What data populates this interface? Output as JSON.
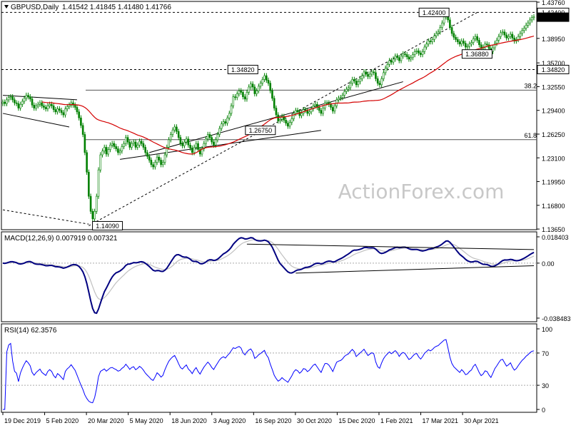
{
  "watermark": "ActionForex.com",
  "chart_data": [
    {
      "type": "candlestick",
      "title": "GBPUSD,Daily",
      "ohlc_label": "1.41542 1.41845 1.41480 1.41766",
      "colors": {
        "bull": "#008000",
        "bear": "#008000",
        "ma": "#d40000",
        "trend": "#000000",
        "axis": "#000000"
      },
      "ylim": [
        1.1366,
        1.4376
      ],
      "y_ticks": [
        "1.43760",
        "1.38950",
        "1.35700",
        "1.32550",
        "1.29400",
        "1.26250",
        "1.23100",
        "1.19950",
        "1.16800",
        "1.13650"
      ],
      "y_tick_values": [
        1.4376,
        1.3895,
        1.357,
        1.3255,
        1.294,
        1.2625,
        1.231,
        1.1995,
        1.168,
        1.1365
      ],
      "price_tags": [
        {
          "label": "1.42400",
          "value": 1.424
        },
        {
          "label": "1.41766",
          "value": 1.41766,
          "dark": true
        },
        {
          "label": "1.34820",
          "value": 1.3482
        }
      ],
      "annotations": [
        {
          "label": "1.14090",
          "x": 0.197,
          "y": 1.1409
        },
        {
          "label": "1.34820",
          "x": 0.452,
          "y": 1.3482
        },
        {
          "label": "1.26750",
          "x": 0.485,
          "y": 1.2675
        },
        {
          "label": "1.42400",
          "x": 0.812,
          "y": 1.424
        },
        {
          "label": "1.36880",
          "x": 0.893,
          "y": 1.3688
        }
      ],
      "fib_levels": [
        {
          "label": "38.2",
          "value": 1.3208
        },
        {
          "label": "61.8",
          "value": 1.2551
        }
      ],
      "close": [
        1.305,
        1.303,
        1.308,
        1.311,
        1.312,
        1.308,
        1.304,
        1.303,
        1.297,
        1.302,
        1.306,
        1.31,
        1.314,
        1.312,
        1.309,
        1.301,
        1.297,
        1.3,
        1.302,
        1.304,
        1.3,
        1.298,
        1.296,
        1.3,
        1.302,
        1.3,
        1.295,
        1.292,
        1.296,
        1.294,
        1.291,
        1.288,
        1.296,
        1.299,
        1.301,
        1.304,
        1.301,
        1.298,
        1.292,
        1.284,
        1.274,
        1.262,
        1.238,
        1.212,
        1.18,
        1.16,
        1.15,
        1.16,
        1.18,
        1.215,
        1.235,
        1.24,
        1.245,
        1.236,
        1.242,
        1.248,
        1.25,
        1.246,
        1.243,
        1.238,
        1.24,
        1.246,
        1.25,
        1.258,
        1.252,
        1.245,
        1.25,
        1.252,
        1.245,
        1.248,
        1.253,
        1.25,
        1.245,
        1.238,
        1.233,
        1.228,
        1.222,
        1.219,
        1.225,
        1.232,
        1.228,
        1.222,
        1.225,
        1.235,
        1.245,
        1.255,
        1.262,
        1.268,
        1.272,
        1.266,
        1.258,
        1.25,
        1.247,
        1.252,
        1.256,
        1.248,
        1.244,
        1.238,
        1.245,
        1.25,
        1.242,
        1.236,
        1.243,
        1.25,
        1.256,
        1.262,
        1.258,
        1.252,
        1.248,
        1.255,
        1.262,
        1.27,
        1.276,
        1.279,
        1.277,
        1.284,
        1.29,
        1.3,
        1.312,
        1.311,
        1.316,
        1.32,
        1.318,
        1.312,
        1.309,
        1.318,
        1.325,
        1.329,
        1.325,
        1.316,
        1.32,
        1.326,
        1.33,
        1.335,
        1.34,
        1.334,
        1.33,
        1.32,
        1.31,
        1.297,
        1.288,
        1.28,
        1.282,
        1.286,
        1.281,
        1.277,
        1.273,
        1.278,
        1.283,
        1.29,
        1.294,
        1.292,
        1.287,
        1.29,
        1.295,
        1.294,
        1.29,
        1.292,
        1.296,
        1.3,
        1.302,
        1.298,
        1.294,
        1.29,
        1.297,
        1.304,
        1.304,
        1.302,
        1.298,
        1.293,
        1.3,
        1.308,
        1.31,
        1.311,
        1.314,
        1.319,
        1.322,
        1.324,
        1.33,
        1.335,
        1.333,
        1.328,
        1.332,
        1.336,
        1.34,
        1.345,
        1.342,
        1.339,
        1.342,
        1.345,
        1.344,
        1.336,
        1.33,
        1.328,
        1.336,
        1.344,
        1.35,
        1.355,
        1.36,
        1.358,
        1.362,
        1.366,
        1.364,
        1.36,
        1.366,
        1.369,
        1.368,
        1.365,
        1.362,
        1.364,
        1.368,
        1.372,
        1.373,
        1.37,
        1.368,
        1.372,
        1.378,
        1.382,
        1.386,
        1.385,
        1.388,
        1.393,
        1.396,
        1.398,
        1.404,
        1.41,
        1.418,
        1.421,
        1.414,
        1.404,
        1.396,
        1.391,
        1.388,
        1.385,
        1.382,
        1.386,
        1.383,
        1.378,
        1.379,
        1.382,
        1.384,
        1.389,
        1.392,
        1.387,
        1.381,
        1.376,
        1.378,
        1.382,
        1.381,
        1.376,
        1.372,
        1.377,
        1.383,
        1.387,
        1.392,
        1.397,
        1.398,
        1.394,
        1.39,
        1.392,
        1.395,
        1.39,
        1.386,
        1.388,
        1.392,
        1.396,
        1.4,
        1.403,
        1.407,
        1.41,
        1.414,
        1.417,
        1.418
      ]
    },
    {
      "type": "line",
      "title": "MACD(12,26,9) 0.007919 0.007321",
      "ylim": [
        -0.0385,
        0.0184
      ],
      "y_ticks": [
        "0.018403",
        "0.00",
        "-0.038483"
      ],
      "y_tick_values": [
        0.018403,
        0.0,
        -0.038483
      ],
      "series": [
        {
          "name": "MACD",
          "color": "#000080"
        },
        {
          "name": "Signal",
          "color": "#c0c0c0"
        }
      ]
    },
    {
      "type": "line",
      "title": "RSI(14) 62.3576",
      "ylim": [
        0,
        100
      ],
      "y_ticks": [
        "100",
        "70",
        "30",
        "0"
      ],
      "y_tick_values": [
        100,
        70,
        30,
        0
      ],
      "series": [
        {
          "name": "RSI",
          "color": "#0000ff"
        }
      ]
    }
  ],
  "x_axis": {
    "labels": [
      "19 Dec 2019",
      "5 Feb 2020",
      "20 Mar 2020",
      "5 May 2020",
      "18 Jun 2020",
      "3 Aug 2020",
      "16 Sep 2020",
      "30 Oct 2020",
      "15 Dec 2020",
      "1 Feb 2021",
      "17 Mar 2021",
      "30 Apr 2021"
    ],
    "positions": [
      0,
      0.0787,
      0.1574,
      0.2361,
      0.3148,
      0.3935,
      0.4722,
      0.5509,
      0.6296,
      0.7083,
      0.787,
      0.8657
    ]
  }
}
